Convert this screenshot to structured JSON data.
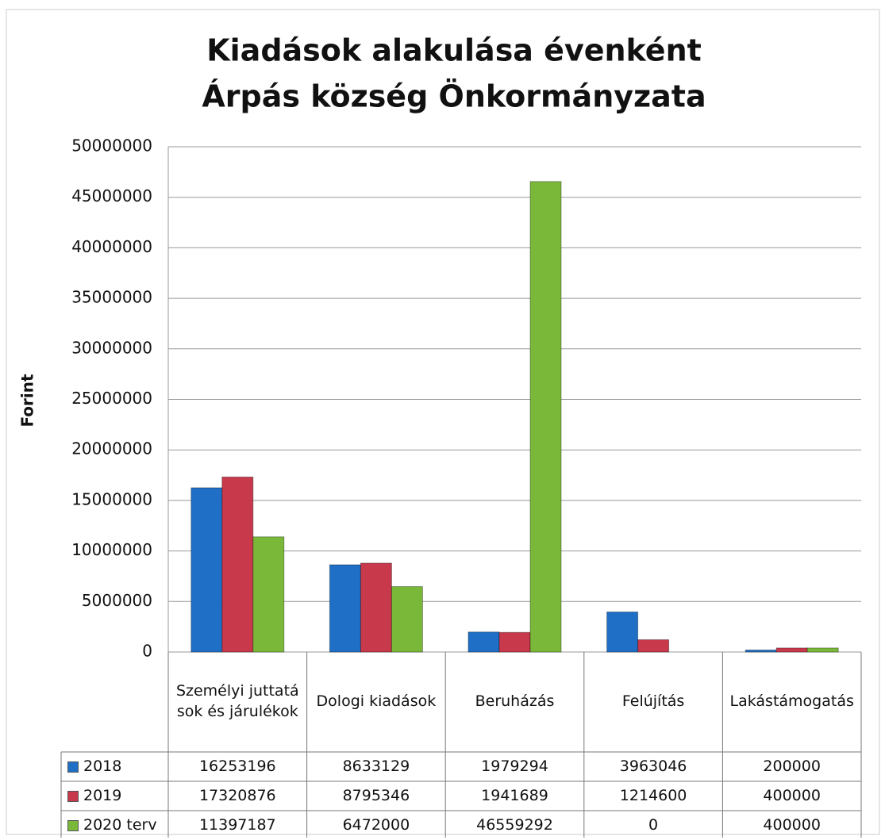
{
  "chart_data": {
    "type": "bar",
    "title": "Kiadások alakulása évenként",
    "subtitle": "Árpás község Önkormányzata",
    "y_label": "Forint",
    "categories": [
      "Személyi juttatások és járulékok",
      "Dologi kiadások",
      "Beruházás",
      "Felújítás",
      "Lakástámogatás"
    ],
    "series": [
      {
        "name": "2018",
        "color": "#1f6fc6",
        "values": [
          16253196,
          8633129,
          1979294,
          3963046,
          200000
        ]
      },
      {
        "name": "2019",
        "color": "#c8394c",
        "values": [
          17320876,
          8795346,
          1941689,
          1214600,
          400000
        ]
      },
      {
        "name": "2020 terv",
        "color": "#7ab83a",
        "values": [
          11397187,
          6472000,
          46559292,
          0,
          400000
        ]
      }
    ],
    "ylim": [
      0,
      50000000
    ],
    "yticks": [
      0,
      5000000,
      10000000,
      15000000,
      20000000,
      25000000,
      30000000,
      35000000,
      40000000,
      45000000,
      50000000
    ],
    "grid": true
  }
}
